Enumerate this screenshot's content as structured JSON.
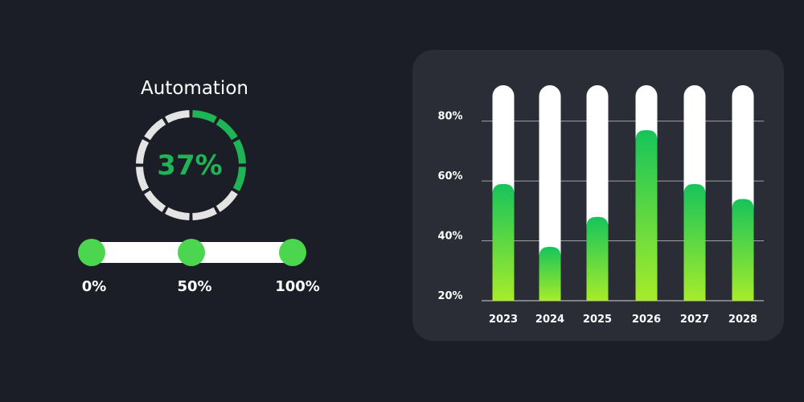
{
  "gauge": {
    "title": "Automation",
    "value_label": "37%",
    "value": 37,
    "segments": 12,
    "color_active": "#1fb455",
    "color_inactive": "#e4e4e4"
  },
  "slider": {
    "knob_color": "#4cd64f",
    "track_color": "#ffffff",
    "stops": [
      {
        "label": "0%",
        "value": 0
      },
      {
        "label": "50%",
        "value": 50
      },
      {
        "label": "100%",
        "value": 100
      }
    ]
  },
  "chart_data": {
    "type": "bar",
    "title": "",
    "xlabel": "",
    "ylabel": "",
    "categories": [
      "2023",
      "2024",
      "2025",
      "2026",
      "2027",
      "2028"
    ],
    "values": [
      59,
      38,
      48,
      77,
      59,
      54
    ],
    "ylim": [
      20,
      92
    ],
    "yticks": [
      {
        "value": 20,
        "label": "20%"
      },
      {
        "value": 40,
        "label": "40%"
      },
      {
        "value": 60,
        "label": "60%"
      },
      {
        "value": 80,
        "label": "80%"
      }
    ],
    "grid": true,
    "bar_track_color": "#ffffff",
    "bar_gradient_top": "#16c45a",
    "bar_gradient_bottom": "#a6ec2a"
  }
}
